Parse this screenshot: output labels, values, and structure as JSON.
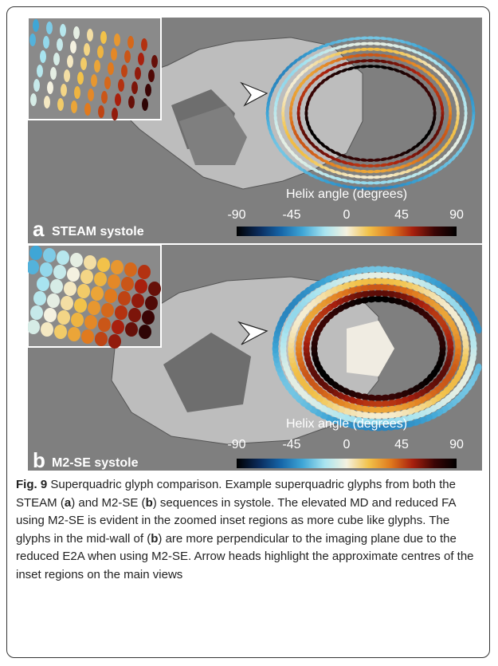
{
  "panels": [
    {
      "label": "a",
      "title": "STEAM systole",
      "colorbar": {
        "title": "Helix angle (degrees)",
        "ticks": [
          -90,
          -45,
          0,
          45,
          90
        ]
      }
    },
    {
      "label": "b",
      "title": "M2-SE systole",
      "colorbar": {
        "title": "Helix angle (degrees)",
        "ticks": [
          -90,
          -45,
          0,
          45,
          90
        ]
      }
    }
  ],
  "caption": {
    "parts": [
      "Fig. 9",
      "Superquadric glyph comparison. Example superquadric glyphs from both the STEAM (",
      "a",
      ") and M2-SE (",
      "b",
      ") sequences in systole. The elevated MD and reduced FA using M2-SE is evident in the zoomed inset regions as more cube like glyphs. The glyphs in the mid-wall of (",
      "b",
      ") are more perpendicular to the imaging plane due to the reduced E2A when using M2-SE. Arrow heads highlight the approximate centres of the inset regions on the main views"
    ]
  }
}
